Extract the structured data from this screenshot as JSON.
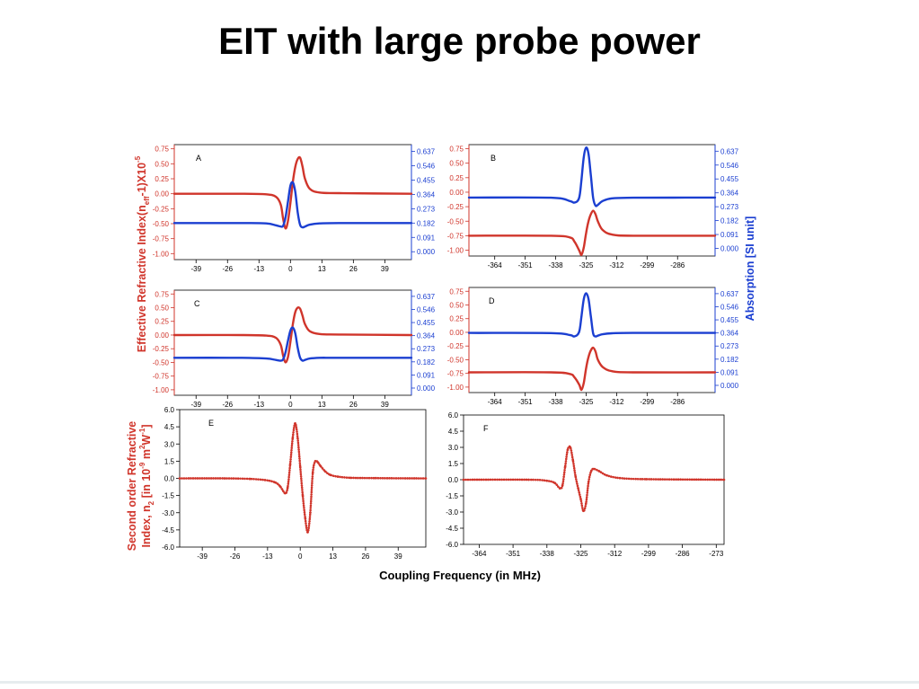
{
  "slide": {
    "title": "EIT with large probe power"
  },
  "colors": {
    "red": "#d0352b",
    "blue": "#1b3fd1",
    "axis": "#000000"
  },
  "chart_data": [
    {
      "type": "line",
      "panel": "A",
      "x_ticks": [
        "-39",
        "-26",
        "-13",
        "0",
        "13",
        "26",
        "39"
      ],
      "y_left_ticks": [
        "0.75",
        "0.50",
        "0.25",
        "0.00",
        "-0.25",
        "-0.50",
        "-0.75",
        "-1.00"
      ],
      "y_right_ticks": [
        "0.637",
        "0.546",
        "0.455",
        "0.364",
        "0.273",
        "0.182",
        "0.091",
        "0.000"
      ],
      "xlim": [
        -48,
        50
      ],
      "ylim_left": [
        -1.1,
        0.82
      ],
      "ylim_right": [
        -0.05,
        0.68
      ],
      "series": [
        {
          "axis": "left",
          "color": "#d0352b",
          "x": [
            -48,
            -20,
            -10,
            -6,
            -4,
            -3,
            -2,
            -1,
            0,
            1,
            2,
            3,
            4,
            5,
            6,
            8,
            12,
            20,
            50
          ],
          "y": [
            0,
            0,
            -0.01,
            -0.05,
            -0.18,
            -0.42,
            -0.58,
            -0.45,
            -0.15,
            0.2,
            0.45,
            0.58,
            0.6,
            0.45,
            0.25,
            0.08,
            0.02,
            0.01,
            0
          ]
        },
        {
          "axis": "right",
          "color": "#1b3fd1",
          "x": [
            -48,
            -20,
            -10,
            -6,
            -4,
            -3,
            -2,
            -1,
            0,
            1,
            2,
            3,
            4,
            5,
            6,
            8,
            12,
            20,
            50
          ],
          "y": [
            0.182,
            0.182,
            0.18,
            0.168,
            0.16,
            0.165,
            0.22,
            0.32,
            0.42,
            0.44,
            0.38,
            0.25,
            0.17,
            0.155,
            0.16,
            0.172,
            0.18,
            0.182,
            0.182
          ]
        }
      ],
      "annotation": "A"
    },
    {
      "type": "line",
      "panel": "B",
      "x_ticks": [
        "-364",
        "-351",
        "-338",
        "-325",
        "-312",
        "-299",
        "-286"
      ],
      "y_left_ticks": [
        "0.75",
        "0.50",
        "0.25",
        "0.00",
        "-0.25",
        "-0.50",
        "-0.75",
        "-1.00"
      ],
      "y_right_ticks": [
        "0.637",
        "0.546",
        "0.455",
        "0.364",
        "0.273",
        "0.182",
        "0.091",
        "0.000"
      ],
      "xlim": [
        -375,
        -270
      ],
      "ylim_left": [
        -1.1,
        0.82
      ],
      "ylim_right": [
        -0.05,
        0.68
      ],
      "series": [
        {
          "axis": "left",
          "color": "#d0352b",
          "x": [
            -375,
            -340,
            -332,
            -330,
            -328,
            -327,
            -326,
            -325,
            -324,
            -323,
            -322,
            -321,
            -320,
            -318,
            -314,
            -305,
            -270
          ],
          "y": [
            -0.75,
            -0.75,
            -0.78,
            -0.85,
            -1.0,
            -1.08,
            -0.95,
            -0.7,
            -0.5,
            -0.38,
            -0.32,
            -0.38,
            -0.5,
            -0.65,
            -0.73,
            -0.75,
            -0.75
          ]
        },
        {
          "axis": "right",
          "color": "#1b3fd1",
          "x": [
            -375,
            -340,
            -332,
            -330,
            -328,
            -327,
            -326,
            -325,
            -324,
            -323,
            -322,
            -321,
            -320,
            -318,
            -314,
            -305,
            -270
          ],
          "y": [
            0.333,
            0.332,
            0.31,
            0.3,
            0.33,
            0.45,
            0.6,
            0.66,
            0.62,
            0.48,
            0.33,
            0.28,
            0.285,
            0.31,
            0.328,
            0.332,
            0.333
          ]
        }
      ],
      "annotation": "B"
    },
    {
      "type": "line",
      "panel": "C",
      "x_ticks": [
        "-39",
        "-26",
        "-13",
        "0",
        "13",
        "26",
        "39"
      ],
      "y_left_ticks": [
        "0.75",
        "0.50",
        "0.25",
        "0.00",
        "-0.25",
        "-0.50",
        "-0.75",
        "-1.00"
      ],
      "y_right_ticks": [
        "0.637",
        "0.546",
        "0.455",
        "0.364",
        "0.273",
        "0.182",
        "0.091",
        "0.000"
      ],
      "xlim": [
        -48,
        50
      ],
      "ylim_left": [
        -1.1,
        0.82
      ],
      "ylim_right": [
        -0.05,
        0.68
      ],
      "series": [
        {
          "axis": "left",
          "color": "#d0352b",
          "x": [
            -48,
            -20,
            -10,
            -6,
            -4,
            -3,
            -2,
            -1,
            0,
            1,
            2,
            3,
            4,
            5,
            6,
            8,
            12,
            20,
            50
          ],
          "y": [
            0,
            0,
            -0.01,
            -0.05,
            -0.18,
            -0.38,
            -0.5,
            -0.4,
            -0.12,
            0.2,
            0.42,
            0.5,
            0.48,
            0.35,
            0.2,
            0.07,
            0.02,
            0.01,
            0
          ]
        },
        {
          "axis": "right",
          "color": "#1b3fd1",
          "x": [
            -48,
            -20,
            -10,
            -6,
            -4,
            -3,
            -2,
            -1,
            0,
            1,
            2,
            3,
            4,
            5,
            6,
            8,
            12,
            20,
            50
          ],
          "y": [
            0.21,
            0.21,
            0.205,
            0.195,
            0.19,
            0.2,
            0.25,
            0.33,
            0.4,
            0.42,
            0.38,
            0.28,
            0.21,
            0.19,
            0.195,
            0.205,
            0.21,
            0.21,
            0.21
          ]
        }
      ],
      "annotation": "C"
    },
    {
      "type": "line",
      "panel": "D",
      "x_ticks": [
        "-364",
        "-351",
        "-338",
        "-325",
        "-312",
        "-299",
        "-286"
      ],
      "y_left_ticks": [
        "0.75",
        "0.50",
        "0.25",
        "0.00",
        "-0.25",
        "-0.50",
        "-0.75",
        "-1.00"
      ],
      "y_right_ticks": [
        "0.637",
        "0.546",
        "0.455",
        "0.364",
        "0.273",
        "0.182",
        "0.091",
        "0.000"
      ],
      "xlim": [
        -375,
        -270
      ],
      "ylim_left": [
        -1.1,
        0.82
      ],
      "ylim_right": [
        -0.05,
        0.68
      ],
      "series": [
        {
          "axis": "left",
          "color": "#d0352b",
          "x": [
            -375,
            -340,
            -332,
            -330,
            -328,
            -327,
            -326,
            -325,
            -324,
            -323,
            -322,
            -321,
            -320,
            -318,
            -314,
            -305,
            -270
          ],
          "y": [
            -0.73,
            -0.73,
            -0.76,
            -0.82,
            -0.95,
            -1.05,
            -0.92,
            -0.65,
            -0.45,
            -0.33,
            -0.28,
            -0.35,
            -0.5,
            -0.63,
            -0.71,
            -0.73,
            -0.73
          ]
        },
        {
          "axis": "right",
          "color": "#1b3fd1",
          "x": [
            -375,
            -340,
            -332,
            -330,
            -328,
            -327,
            -326,
            -325,
            -324,
            -323,
            -322,
            -321,
            -320,
            -318,
            -314,
            -305,
            -270
          ],
          "y": [
            0.364,
            0.363,
            0.35,
            0.34,
            0.37,
            0.48,
            0.6,
            0.64,
            0.6,
            0.48,
            0.36,
            0.34,
            0.345,
            0.355,
            0.362,
            0.364,
            0.364
          ]
        }
      ],
      "annotation": "D"
    },
    {
      "type": "scatter",
      "panel": "E",
      "x_ticks": [
        "-39",
        "-26",
        "-13",
        "0",
        "13",
        "26",
        "39"
      ],
      "y_ticks": [
        "6.0",
        "4.5",
        "3.0",
        "1.5",
        "0.0",
        "-1.5",
        "-3.0",
        "-4.5",
        "-6.0"
      ],
      "xlim": [
        -48,
        50
      ],
      "ylim": [
        -6.0,
        6.0
      ],
      "series": [
        {
          "color": "#d0352b",
          "x": [
            -48,
            -30,
            -20,
            -14,
            -10,
            -8,
            -6,
            -5,
            -4,
            -3,
            -2,
            -1,
            0,
            1,
            2,
            3,
            4,
            5,
            6,
            7,
            8,
            10,
            12,
            15,
            20,
            30,
            50
          ],
          "y": [
            0,
            0,
            -0.05,
            -0.15,
            -0.35,
            -0.7,
            -1.3,
            -0.8,
            1.2,
            3.5,
            4.8,
            3.5,
            1.0,
            -1.5,
            -3.5,
            -4.7,
            -3.0,
            0.5,
            1.5,
            1.4,
            1.1,
            0.6,
            0.3,
            0.15,
            0.05,
            0.02,
            0
          ]
        }
      ],
      "annotation": "E"
    },
    {
      "type": "scatter",
      "panel": "F",
      "x_ticks": [
        "-364",
        "-351",
        "-338",
        "-325",
        "-312",
        "-299",
        "-286",
        "-273"
      ],
      "y_ticks": [
        "6.0",
        "4.5",
        "3.0",
        "1.5",
        "0.0",
        "-1.5",
        "-3.0",
        "-4.5",
        "-6.0"
      ],
      "xlim": [
        -370,
        -270
      ],
      "ylim": [
        -6.0,
        6.0
      ],
      "series": [
        {
          "color": "#d0352b",
          "x": [
            -370,
            -345,
            -338,
            -335,
            -333,
            -332,
            -331,
            -330,
            -329,
            -328,
            -327,
            -326,
            -325,
            -324,
            -323,
            -322,
            -321,
            -320,
            -318,
            -315,
            -310,
            -300,
            -270
          ],
          "y": [
            0,
            0,
            -0.1,
            -0.3,
            -0.8,
            -0.5,
            1.2,
            2.8,
            3.0,
            1.8,
            0.3,
            -0.8,
            -1.8,
            -2.9,
            -2.2,
            -0.2,
            0.8,
            1.0,
            0.8,
            0.4,
            0.15,
            0.05,
            0
          ]
        }
      ],
      "annotation": "F"
    }
  ],
  "axis_titles": {
    "left_top": "Effective Refractive Index(n_eff-1)X10^-5",
    "right_top": "Absorption [SI unit]",
    "left_bottom_line1": "Second order Refractive",
    "left_bottom_line2": "Index, n_2 [in 10^-9 m^2W^-1]",
    "x_bottom": "Coupling Frequency (in MHz)"
  },
  "axis_title_parts": {
    "eff_main": "Effective Refractive Index(n",
    "eff_sub": "eff",
    "eff_mid": "-1)X10",
    "eff_sup": "-5",
    "so_line1": "Second order Refractive",
    "so_a": "Index, n",
    "so_sub": "2",
    "so_b": " [in 10",
    "so_sup1": "-9",
    "so_c": " m",
    "so_sup2": "2",
    "so_d": "W",
    "so_sup3": "-1",
    "so_e": "]"
  }
}
